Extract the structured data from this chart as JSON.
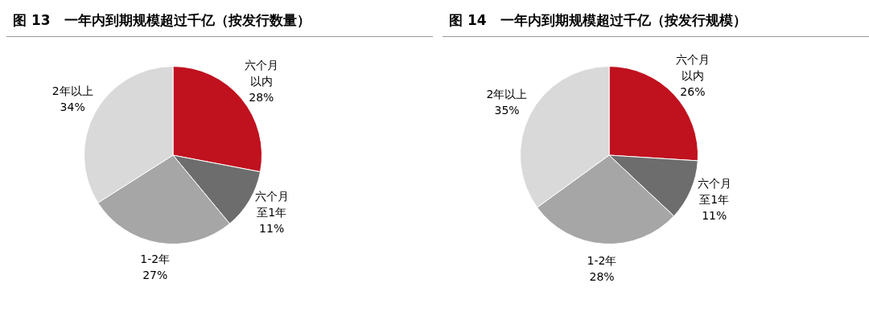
{
  "chart_data": [
    {
      "type": "pie",
      "title": "图 13　一年内到期规模超过千亿（按发行数量）",
      "categories": [
        "六个月以内",
        "六个月至1年",
        "1-2年",
        "2年以上"
      ],
      "values": [
        28,
        11,
        27,
        34
      ],
      "value_labels": [
        "28%",
        "11%",
        "27%",
        "34%"
      ],
      "colors": [
        "#c0111f",
        "#6d6d6d",
        "#a6a6a6",
        "#d9d9d9"
      ],
      "legend": false
    },
    {
      "type": "pie",
      "title": "图 14　一年内到期规模超过千亿（按发行规模）",
      "categories": [
        "六个月以内",
        "六个月至1年",
        "1-2年",
        "2年以上"
      ],
      "values": [
        26,
        11,
        28,
        35
      ],
      "value_labels": [
        "26%",
        "11%",
        "28%",
        "35%"
      ],
      "colors": [
        "#c0111f",
        "#6d6d6d",
        "#a6a6a6",
        "#d9d9d9"
      ],
      "legend": false
    }
  ]
}
